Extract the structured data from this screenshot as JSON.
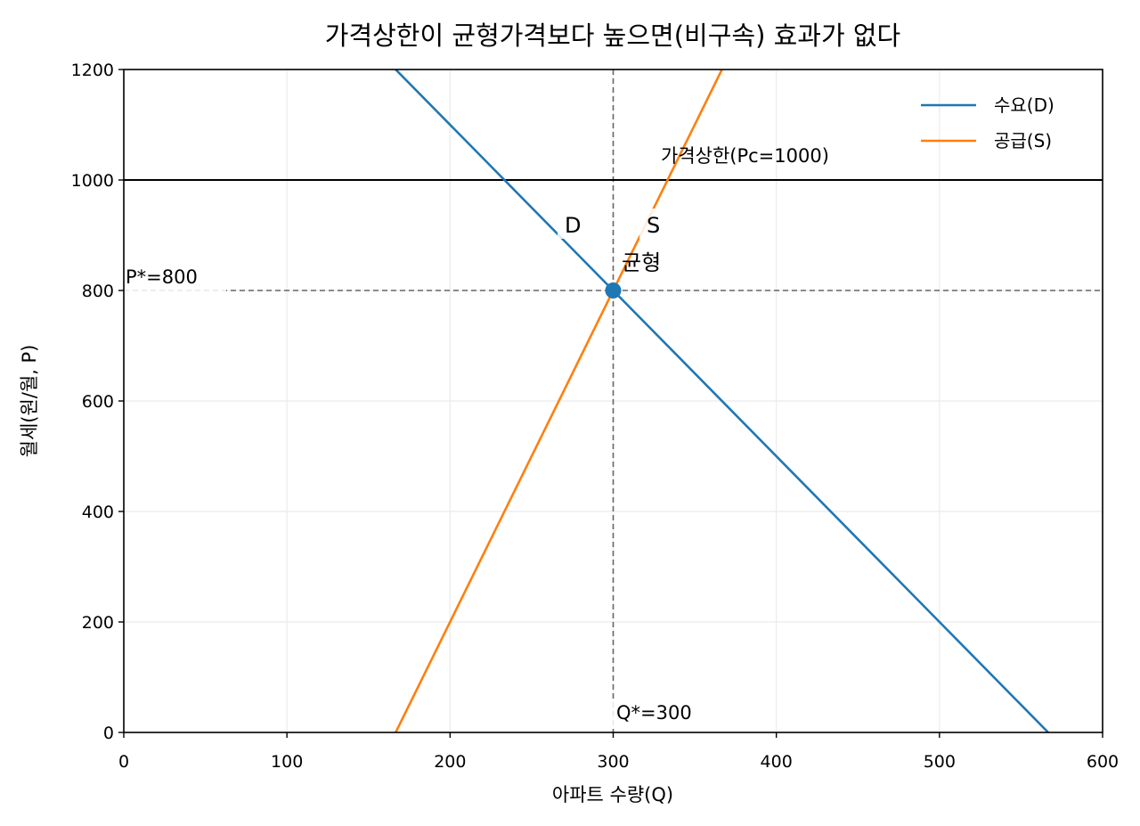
{
  "chart_data": {
    "type": "line",
    "title": "가격상한이 균형가격보다 높으면(비구속) 효과가 없다",
    "xlabel": "아파트 수량(Q)",
    "ylabel": "월세(원/월, P)",
    "xlim": [
      0,
      600
    ],
    "ylim": [
      0,
      1200
    ],
    "xticks": [
      0,
      100,
      200,
      300,
      400,
      500,
      600
    ],
    "yticks": [
      0,
      200,
      400,
      600,
      800,
      1000,
      1200
    ],
    "grid": true,
    "legend_position": "top-right",
    "series": [
      {
        "name": "수요(D)",
        "color": "#1f77b4",
        "x": [
          0,
          566.67
        ],
        "y": [
          1700,
          0
        ]
      },
      {
        "name": "공급(S)",
        "color": "#ff7f0e",
        "x": [
          166.67,
          366.67
        ],
        "y": [
          0,
          1200
        ]
      }
    ],
    "price_ceiling": {
      "value": 1000,
      "label": "가격상한(Pc=1000)",
      "color": "#000000"
    },
    "equilibrium": {
      "q": 300,
      "p": 800,
      "label": "균형",
      "color": "#1f77b4"
    },
    "reference_labels": {
      "p_star": "P*=800",
      "q_star": "Q*=300"
    },
    "curve_labels": {
      "demand": "D",
      "supply": "S"
    }
  }
}
